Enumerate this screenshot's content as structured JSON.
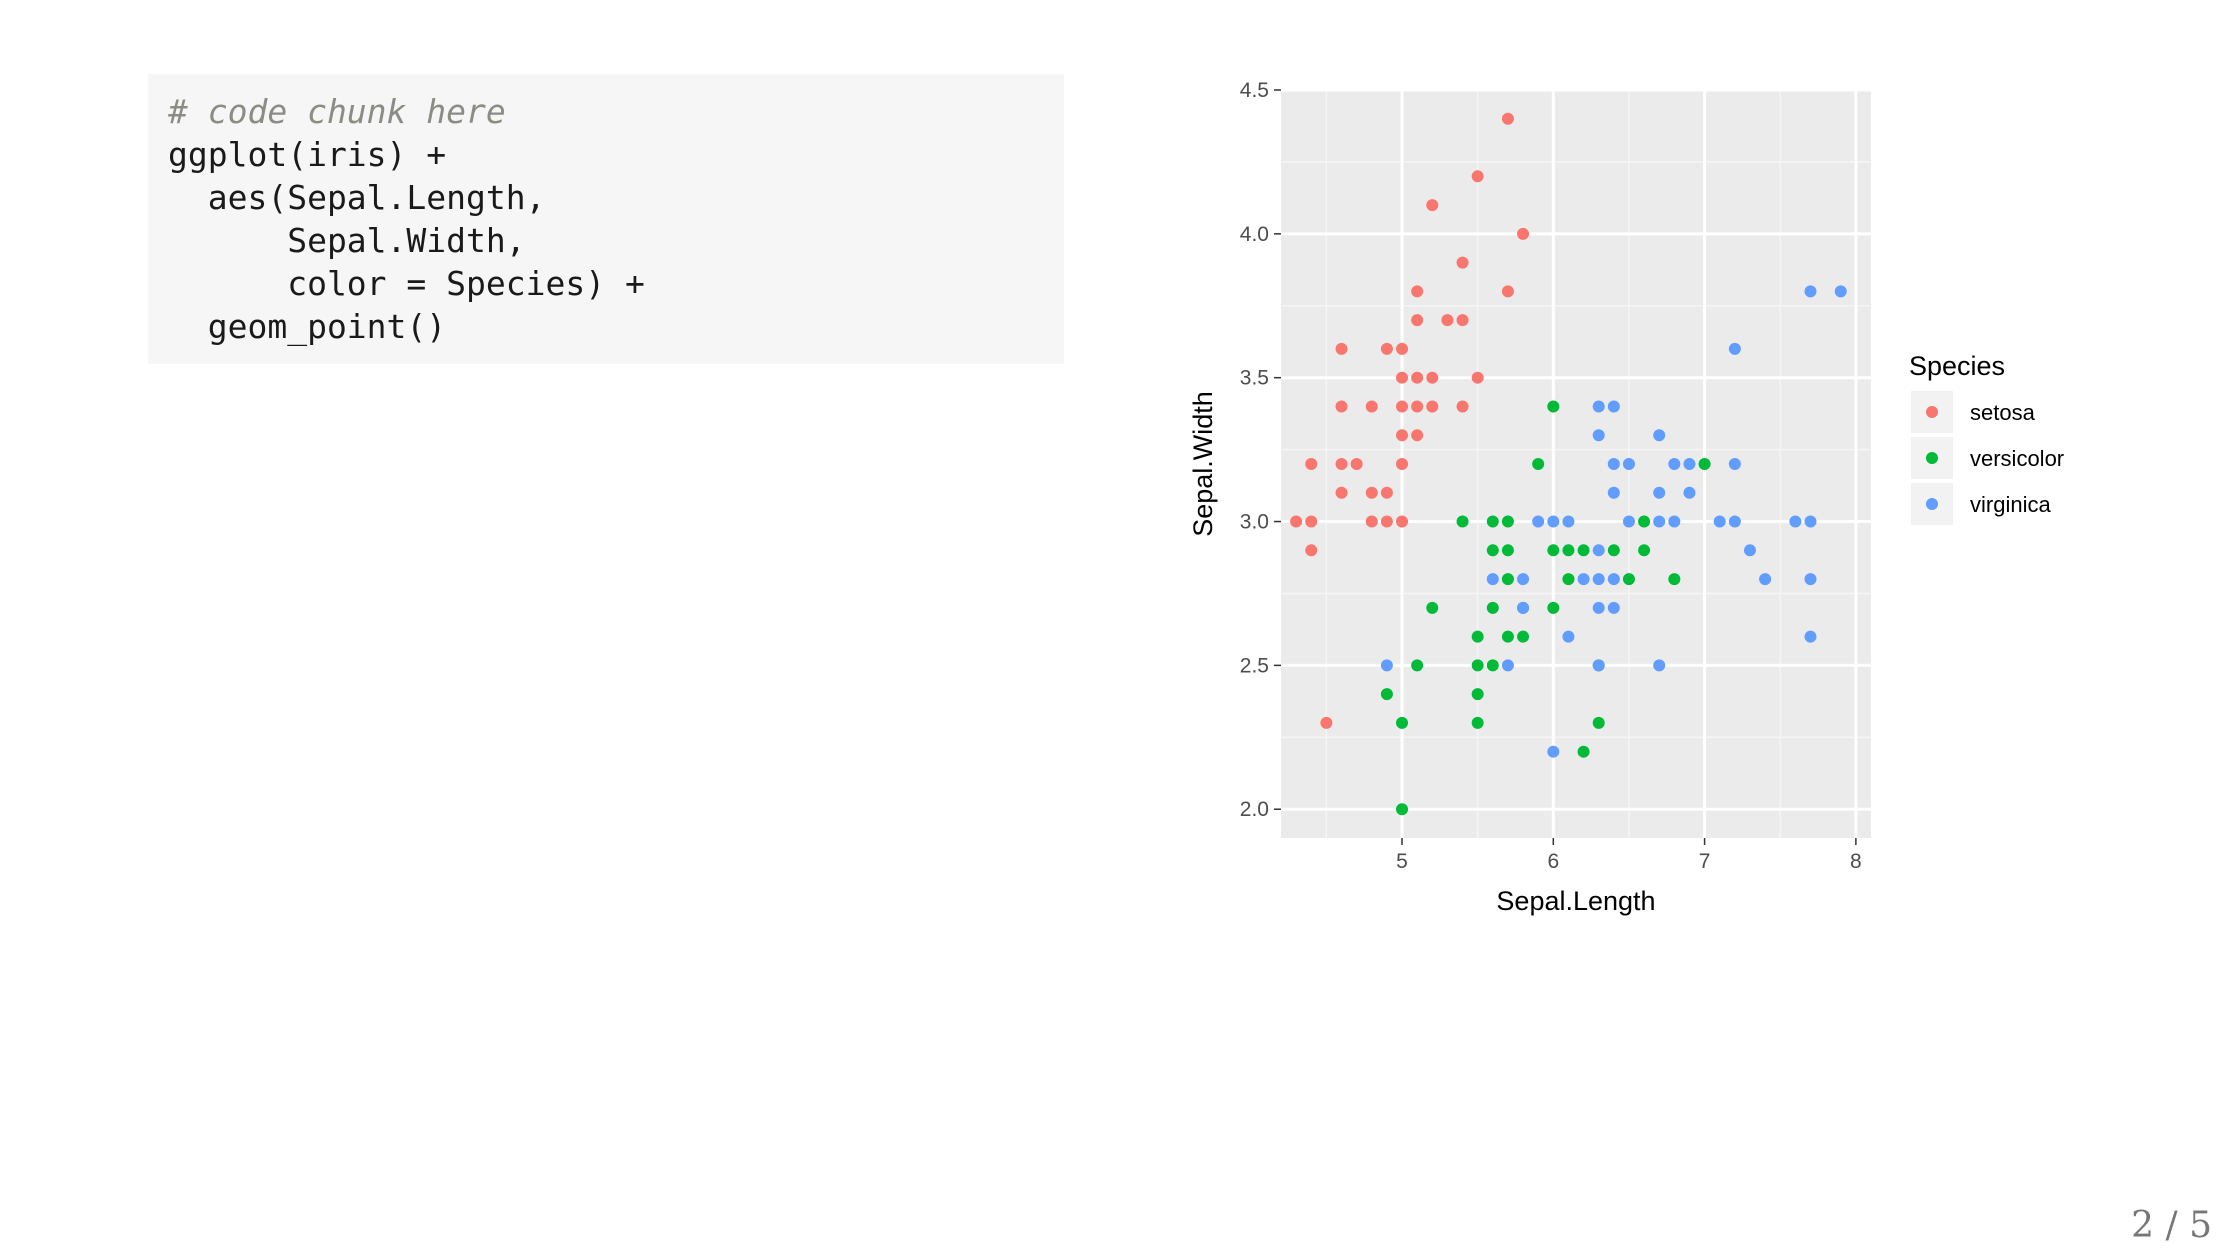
{
  "code": {
    "comment": "# code chunk here",
    "lines": [
      "ggplot(iris) +",
      "  aes(Sepal.Length,",
      "      Sepal.Width,",
      "      color = Species) +",
      "  geom_point()"
    ]
  },
  "page_number": "2 / 5",
  "chart_data": {
    "type": "scatter",
    "xlabel": "Sepal.Length",
    "ylabel": "Sepal.Width",
    "xlim": [
      4.2,
      8.1
    ],
    "ylim": [
      1.9,
      4.5
    ],
    "x_ticks": [
      5,
      6,
      7,
      8
    ],
    "x_tick_labels": [
      "5",
      "6",
      "7",
      "8"
    ],
    "y_ticks": [
      2.0,
      2.5,
      3.0,
      3.5,
      4.0,
      4.5
    ],
    "y_tick_labels": [
      "2.0",
      "2.5",
      "3.0",
      "3.5",
      "4.0",
      "4.5"
    ],
    "grid": true,
    "legend": {
      "title": "Species",
      "position": "right"
    },
    "series": [
      {
        "name": "setosa",
        "color": "#F8766D",
        "points": [
          [
            4.3,
            3.0
          ],
          [
            4.4,
            3.0
          ],
          [
            4.4,
            3.2
          ],
          [
            4.4,
            2.9
          ],
          [
            4.5,
            2.3
          ],
          [
            4.6,
            3.6
          ],
          [
            4.6,
            3.4
          ],
          [
            4.6,
            3.2
          ],
          [
            4.6,
            3.1
          ],
          [
            4.7,
            3.2
          ],
          [
            4.8,
            3.4
          ],
          [
            4.8,
            3.1
          ],
          [
            4.8,
            3.0
          ],
          [
            4.9,
            3.6
          ],
          [
            4.9,
            3.1
          ],
          [
            4.9,
            3.0
          ],
          [
            5.0,
            3.6
          ],
          [
            5.0,
            3.5
          ],
          [
            5.0,
            3.4
          ],
          [
            5.0,
            3.3
          ],
          [
            5.0,
            3.2
          ],
          [
            5.0,
            3.0
          ],
          [
            5.1,
            3.8
          ],
          [
            5.1,
            3.7
          ],
          [
            5.1,
            3.5
          ],
          [
            5.1,
            3.4
          ],
          [
            5.1,
            3.3
          ],
          [
            5.2,
            4.1
          ],
          [
            5.2,
            3.5
          ],
          [
            5.2,
            3.4
          ],
          [
            5.3,
            3.7
          ],
          [
            5.4,
            3.9
          ],
          [
            5.4,
            3.7
          ],
          [
            5.4,
            3.4
          ],
          [
            5.5,
            4.2
          ],
          [
            5.5,
            3.5
          ],
          [
            5.7,
            4.4
          ],
          [
            5.7,
            3.8
          ],
          [
            5.8,
            4.0
          ]
        ]
      },
      {
        "name": "versicolor",
        "color": "#00BA38",
        "points": [
          [
            4.9,
            2.4
          ],
          [
            5.0,
            2.3
          ],
          [
            5.0,
            2.0
          ],
          [
            5.1,
            2.5
          ],
          [
            5.2,
            2.7
          ],
          [
            5.4,
            3.0
          ],
          [
            5.5,
            2.6
          ],
          [
            5.5,
            2.5
          ],
          [
            5.5,
            2.4
          ],
          [
            5.5,
            2.3
          ],
          [
            5.6,
            3.0
          ],
          [
            5.6,
            2.9
          ],
          [
            5.6,
            2.7
          ],
          [
            5.6,
            2.5
          ],
          [
            5.7,
            3.0
          ],
          [
            5.7,
            2.9
          ],
          [
            5.7,
            2.8
          ],
          [
            5.7,
            2.6
          ],
          [
            5.8,
            2.7
          ],
          [
            5.8,
            2.6
          ],
          [
            5.9,
            3.2
          ],
          [
            6.0,
            3.4
          ],
          [
            6.0,
            2.9
          ],
          [
            6.0,
            2.7
          ],
          [
            6.1,
            2.9
          ],
          [
            6.1,
            2.8
          ],
          [
            6.2,
            2.9
          ],
          [
            6.2,
            2.2
          ],
          [
            6.3,
            2.5
          ],
          [
            6.3,
            2.3
          ],
          [
            6.4,
            2.9
          ],
          [
            6.5,
            2.8
          ],
          [
            6.6,
            3.0
          ],
          [
            6.6,
            2.9
          ],
          [
            6.8,
            2.8
          ],
          [
            7.0,
            3.2
          ]
        ]
      },
      {
        "name": "virginica",
        "color": "#619CFF",
        "points": [
          [
            4.9,
            2.5
          ],
          [
            5.6,
            2.8
          ],
          [
            5.7,
            2.5
          ],
          [
            5.8,
            2.8
          ],
          [
            5.8,
            2.7
          ],
          [
            5.9,
            3.0
          ],
          [
            6.0,
            3.0
          ],
          [
            6.0,
            2.2
          ],
          [
            6.1,
            3.0
          ],
          [
            6.1,
            2.6
          ],
          [
            6.2,
            2.8
          ],
          [
            6.3,
            3.4
          ],
          [
            6.3,
            3.3
          ],
          [
            6.3,
            2.9
          ],
          [
            6.3,
            2.8
          ],
          [
            6.3,
            2.7
          ],
          [
            6.3,
            2.5
          ],
          [
            6.4,
            3.4
          ],
          [
            6.4,
            3.2
          ],
          [
            6.4,
            3.1
          ],
          [
            6.4,
            2.8
          ],
          [
            6.4,
            2.7
          ],
          [
            6.5,
            3.2
          ],
          [
            6.5,
            3.0
          ],
          [
            6.7,
            3.3
          ],
          [
            6.7,
            3.1
          ],
          [
            6.7,
            3.0
          ],
          [
            6.7,
            2.5
          ],
          [
            6.8,
            3.2
          ],
          [
            6.8,
            3.0
          ],
          [
            6.9,
            3.2
          ],
          [
            6.9,
            3.1
          ],
          [
            7.1,
            3.0
          ],
          [
            7.2,
            3.6
          ],
          [
            7.2,
            3.2
          ],
          [
            7.2,
            3.0
          ],
          [
            7.3,
            2.9
          ],
          [
            7.4,
            2.8
          ],
          [
            7.6,
            3.0
          ],
          [
            7.7,
            3.8
          ],
          [
            7.7,
            3.0
          ],
          [
            7.7,
            2.8
          ],
          [
            7.7,
            2.6
          ],
          [
            7.9,
            3.8
          ]
        ]
      }
    ]
  }
}
